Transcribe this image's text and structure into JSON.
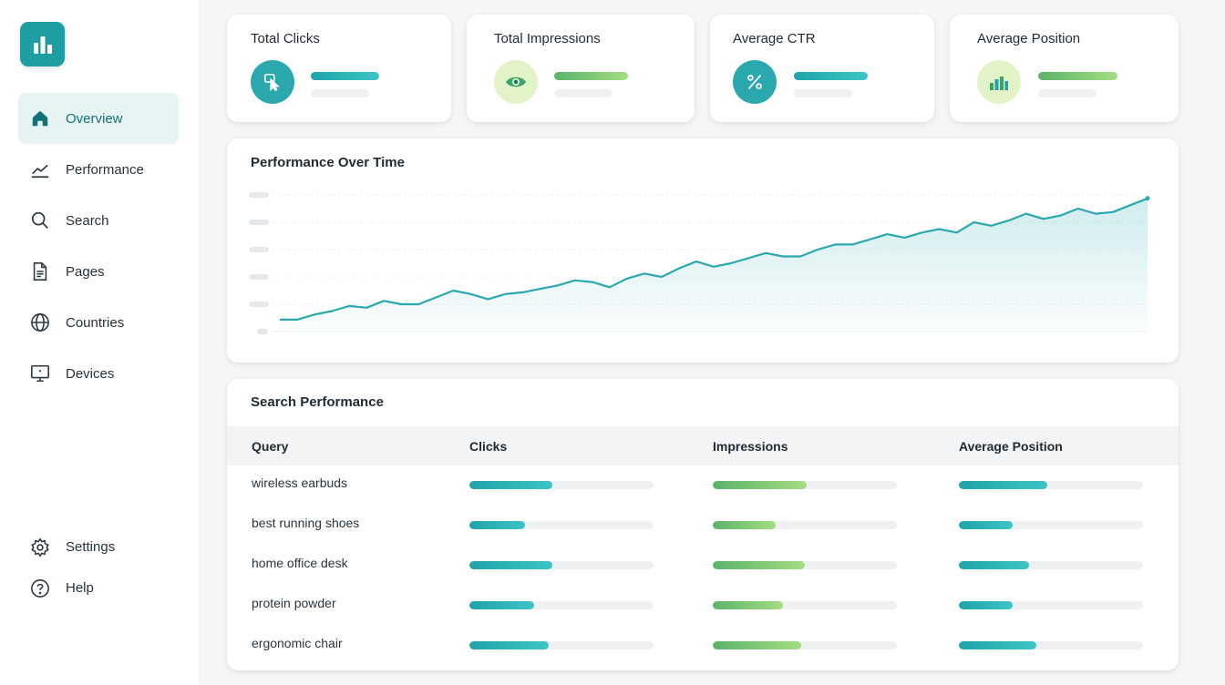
{
  "sidebar": {
    "items": [
      {
        "label": "Overview",
        "icon": "home-icon",
        "active": true
      },
      {
        "label": "Performance",
        "icon": "trend-line-icon"
      },
      {
        "label": "Search",
        "icon": "search-icon"
      },
      {
        "label": "Pages",
        "icon": "document-icon"
      },
      {
        "label": "Countries",
        "icon": "globe-icon"
      },
      {
        "label": "Devices",
        "icon": "monitor-icon"
      }
    ],
    "bottom": [
      {
        "label": "Settings",
        "icon": "gear-icon"
      },
      {
        "label": "Help",
        "icon": "help-icon"
      }
    ]
  },
  "stats": [
    {
      "title": "Total Clicks",
      "icon": "cursor-click-icon",
      "bar_fill": 0.65
    },
    {
      "title": "Total Impressions",
      "icon": "eye-icon",
      "bar_fill": 0.7
    },
    {
      "title": "Average CTR",
      "icon": "percent-icon",
      "bar_fill": 0.7
    },
    {
      "title": "Average Position",
      "icon": "bar-chart-icon",
      "bar_fill": 0.75
    }
  ],
  "performance": {
    "title": "Performance Over Time"
  },
  "chart_data": {
    "type": "area",
    "title": "Performance Over Time",
    "values": [
      0.7,
      0.7,
      1.0,
      1.2,
      1.5,
      1.4,
      1.8,
      1.6,
      1.6,
      2.0,
      2.4,
      2.2,
      1.9,
      2.2,
      2.3,
      2.5,
      2.7,
      3.0,
      2.9,
      2.6,
      3.1,
      3.4,
      3.2,
      3.7,
      4.1,
      3.8,
      4.0,
      4.3,
      4.6,
      4.4,
      4.4,
      4.8,
      5.1,
      5.1,
      5.4,
      5.7,
      5.5,
      5.8,
      6.0,
      5.8,
      6.4,
      6.2,
      6.5,
      6.9,
      6.6,
      6.8,
      7.2,
      6.9,
      7.0,
      7.4,
      7.8
    ],
    "ylim": [
      0,
      8
    ],
    "grid": true,
    "colors": {
      "line": "#2aa8ae",
      "fill": "#d7efef"
    }
  },
  "search_performance": {
    "title": "Search Performance",
    "columns": [
      "Query",
      "Clicks",
      "Impressions",
      "Average Position"
    ],
    "rows": [
      {
        "query": "wireless earbuds",
        "clicks": 0.45,
        "impressions": 0.51,
        "position": 0.48
      },
      {
        "query": "best running shoes",
        "clicks": 0.3,
        "impressions": 0.34,
        "position": 0.29
      },
      {
        "query": "home office desk",
        "clicks": 0.45,
        "impressions": 0.5,
        "position": 0.38
      },
      {
        "query": "protein powder",
        "clicks": 0.35,
        "impressions": 0.38,
        "position": 0.29
      },
      {
        "query": "ergonomic chair",
        "clicks": 0.43,
        "impressions": 0.48,
        "position": 0.42
      }
    ]
  },
  "colors": {
    "accent": "#1e9ea3",
    "green": "#6cc070"
  }
}
